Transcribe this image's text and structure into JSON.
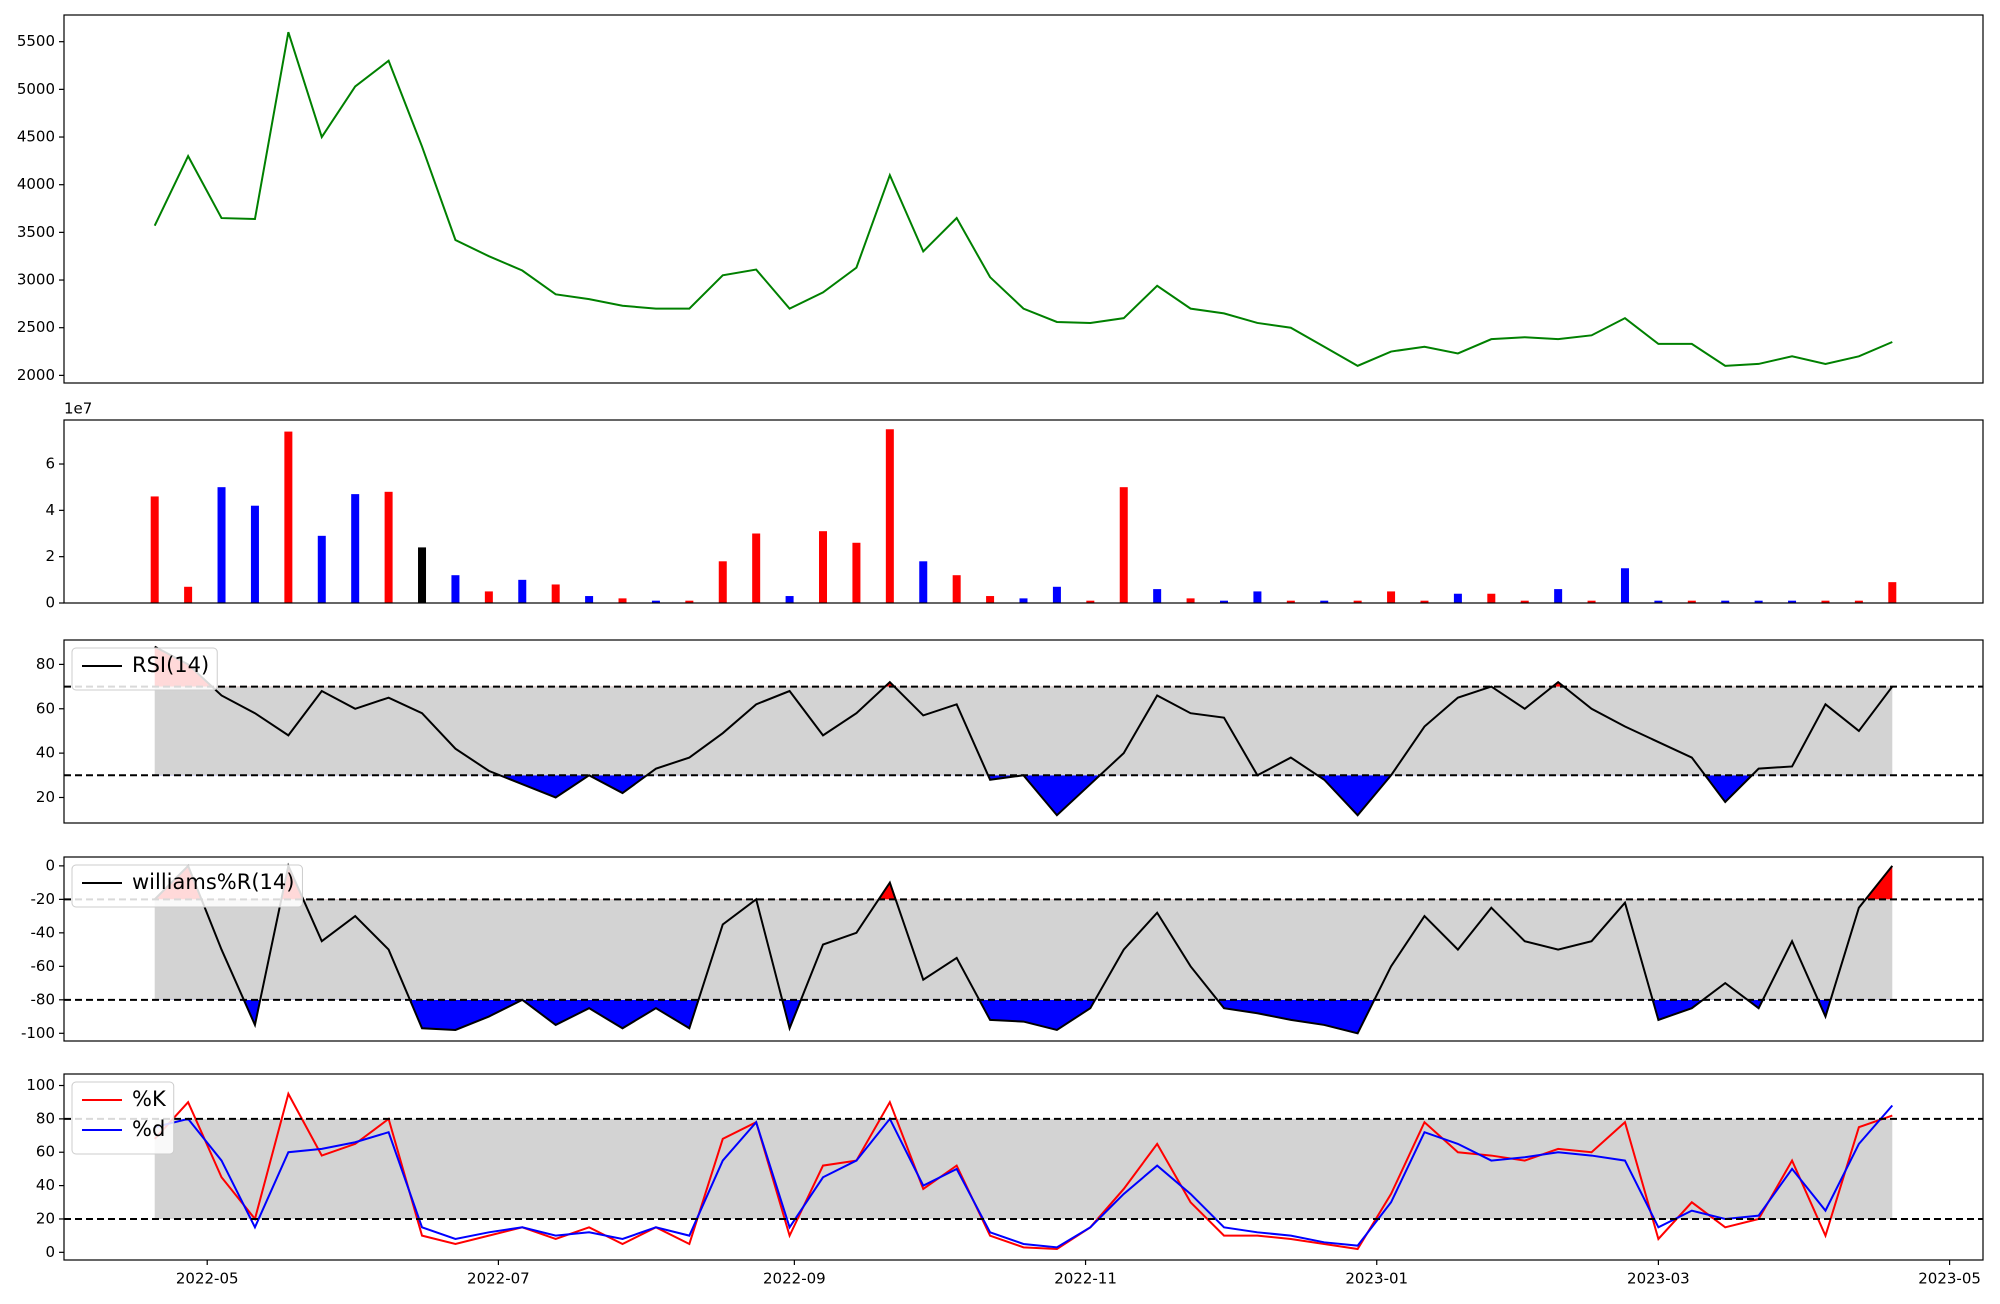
{
  "chart_data": [
    {
      "type": "line",
      "x": [
        "2022-04-20",
        "2022-04-27",
        "2022-05-04",
        "2022-05-11",
        "2022-05-18",
        "2022-05-25",
        "2022-06-01",
        "2022-06-08",
        "2022-06-15",
        "2022-06-22",
        "2022-06-29",
        "2022-07-06",
        "2022-07-13",
        "2022-07-20",
        "2022-07-27",
        "2022-08-03",
        "2022-08-10",
        "2022-08-17",
        "2022-08-24",
        "2022-08-31",
        "2022-09-07",
        "2022-09-14",
        "2022-09-21",
        "2022-09-28",
        "2022-10-05",
        "2022-10-12",
        "2022-10-19",
        "2022-10-26",
        "2022-11-02",
        "2022-11-09",
        "2022-11-16",
        "2022-11-23",
        "2022-11-30",
        "2022-12-07",
        "2022-12-14",
        "2022-12-21",
        "2022-12-28",
        "2023-01-04",
        "2023-01-11",
        "2023-01-18",
        "2023-01-25",
        "2023-02-01",
        "2023-02-08",
        "2023-02-15",
        "2023-02-22",
        "2023-03-01",
        "2023-03-08",
        "2023-03-15",
        "2023-03-22",
        "2023-03-29",
        "2023-04-05",
        "2023-04-12",
        "2023-04-19"
      ],
      "series": [
        {
          "color": "#008000",
          "values": [
            3570,
            4300,
            3650,
            3640,
            5600,
            4500,
            5030,
            5300,
            4400,
            3420,
            3250,
            3100,
            2850,
            2800,
            2730,
            2700,
            2700,
            3050,
            3110,
            2700,
            2870,
            3130,
            4100,
            3300,
            3650,
            3030,
            2700,
            2560,
            2550,
            2600,
            2940,
            2700,
            2650,
            2550,
            2500,
            2300,
            2100,
            2250,
            2300,
            2230,
            2380,
            2400,
            2380,
            2420,
            2600,
            2330,
            2330,
            2100,
            2120,
            2200,
            2120,
            2200,
            2350
          ]
        }
      ],
      "xlim": [
        "2022-04-01",
        "2023-05-08"
      ],
      "ylim": [
        1920,
        5780
      ],
      "yticks": [
        2000,
        2500,
        3000,
        3500,
        4000,
        4500,
        5000,
        5500
      ]
    },
    {
      "type": "bar",
      "x": [
        "2022-04-20",
        "2022-04-27",
        "2022-05-04",
        "2022-05-11",
        "2022-05-18",
        "2022-05-25",
        "2022-06-01",
        "2022-06-08",
        "2022-06-15",
        "2022-06-22",
        "2022-06-29",
        "2022-07-06",
        "2022-07-13",
        "2022-07-20",
        "2022-07-27",
        "2022-08-03",
        "2022-08-10",
        "2022-08-17",
        "2022-08-24",
        "2022-08-31",
        "2022-09-07",
        "2022-09-14",
        "2022-09-21",
        "2022-09-28",
        "2022-10-05",
        "2022-10-12",
        "2022-10-19",
        "2022-10-26",
        "2022-11-02",
        "2022-11-09",
        "2022-11-16",
        "2022-11-23",
        "2022-11-30",
        "2022-12-07",
        "2022-12-14",
        "2022-12-21",
        "2022-12-28",
        "2023-01-04",
        "2023-01-11",
        "2023-01-18",
        "2023-01-25",
        "2023-02-01",
        "2023-02-08",
        "2023-02-15",
        "2023-02-22",
        "2023-03-01",
        "2023-03-08",
        "2023-03-15",
        "2023-03-22",
        "2023-03-29",
        "2023-04-05",
        "2023-04-12",
        "2023-04-19"
      ],
      "values": [
        4.6,
        0.7,
        5.0,
        4.2,
        7.4,
        2.9,
        4.7,
        4.8,
        2.4,
        1.2,
        0.5,
        1.0,
        0.8,
        0.3,
        0.2,
        0.1,
        0.1,
        1.8,
        3.0,
        0.3,
        3.1,
        2.6,
        7.5,
        1.8,
        1.2,
        0.3,
        0.2,
        0.7,
        0.1,
        5.0,
        0.6,
        0.2,
        0.1,
        0.5,
        0.1,
        0.1,
        0.1,
        0.5,
        0.1,
        0.4,
        0.4,
        0.1,
        0.6,
        0.1,
        1.5,
        0.1,
        0.1,
        0.1,
        0.1,
        0.1,
        0.1,
        0.1,
        0.9
      ],
      "colors": [
        "#ff0000",
        "#ff0000",
        "#0000ff",
        "#0000ff",
        "#ff0000",
        "#0000ff",
        "#0000ff",
        "#ff0000",
        "#000000",
        "#0000ff",
        "#ff0000",
        "#0000ff",
        "#ff0000",
        "#0000ff",
        "#ff0000",
        "#0000ff",
        "#ff0000",
        "#ff0000",
        "#ff0000",
        "#0000ff",
        "#ff0000",
        "#ff0000",
        "#ff0000",
        "#0000ff",
        "#ff0000",
        "#ff0000",
        "#0000ff",
        "#0000ff",
        "#ff0000",
        "#ff0000",
        "#0000ff",
        "#ff0000",
        "#0000ff",
        "#0000ff",
        "#ff0000",
        "#0000ff",
        "#ff0000",
        "#ff0000",
        "#ff0000",
        "#0000ff",
        "#ff0000",
        "#ff0000",
        "#0000ff",
        "#ff0000",
        "#0000ff",
        "#0000ff",
        "#ff0000",
        "#0000ff",
        "#0000ff",
        "#0000ff",
        "#ff0000",
        "#ff0000",
        "#ff0000"
      ],
      "offset_label": "1e7",
      "xlim": [
        "2022-04-01",
        "2023-05-08"
      ],
      "ylim": [
        0,
        7.9
      ],
      "yticks": [
        0,
        2,
        4,
        6
      ]
    },
    {
      "type": "line",
      "x": [
        "2022-04-20",
        "2022-04-27",
        "2022-05-04",
        "2022-05-11",
        "2022-05-18",
        "2022-05-25",
        "2022-06-01",
        "2022-06-08",
        "2022-06-15",
        "2022-06-22",
        "2022-06-29",
        "2022-07-06",
        "2022-07-13",
        "2022-07-20",
        "2022-07-27",
        "2022-08-03",
        "2022-08-10",
        "2022-08-17",
        "2022-08-24",
        "2022-08-31",
        "2022-09-07",
        "2022-09-14",
        "2022-09-21",
        "2022-09-28",
        "2022-10-05",
        "2022-10-12",
        "2022-10-19",
        "2022-10-26",
        "2022-11-02",
        "2022-11-09",
        "2022-11-16",
        "2022-11-23",
        "2022-11-30",
        "2022-12-07",
        "2022-12-14",
        "2022-12-21",
        "2022-12-28",
        "2023-01-04",
        "2023-01-11",
        "2023-01-18",
        "2023-01-25",
        "2023-02-01",
        "2023-02-08",
        "2023-02-15",
        "2023-02-22",
        "2023-03-01",
        "2023-03-08",
        "2023-03-15",
        "2023-03-22",
        "2023-03-29",
        "2023-04-05",
        "2023-04-12",
        "2023-04-19"
      ],
      "series": [
        {
          "name": "RSI(14)",
          "color": "#000000",
          "values": [
            88,
            80,
            66,
            58,
            48,
            68,
            60,
            65,
            58,
            42,
            32,
            26,
            20,
            30,
            22,
            33,
            38,
            49,
            62,
            68,
            48,
            58,
            72,
            57,
            62,
            28,
            30,
            12,
            26,
            40,
            66,
            58,
            56,
            30,
            38,
            28,
            12,
            30,
            52,
            65,
            70,
            60,
            72,
            60,
            52,
            45,
            38,
            18,
            33,
            34,
            62,
            50,
            70
          ]
        }
      ],
      "thresholds": [
        30,
        70
      ],
      "band_color": "#d3d3d3",
      "upper_fill": "#ff0000",
      "lower_fill": "#0000ff",
      "legend": "upper left",
      "xlim": [
        "2022-04-01",
        "2023-05-08"
      ],
      "ylim": [
        8.5,
        91
      ],
      "yticks": [
        20,
        40,
        60,
        80
      ]
    },
    {
      "type": "line",
      "x": [
        "2022-04-20",
        "2022-04-27",
        "2022-05-04",
        "2022-05-11",
        "2022-05-18",
        "2022-05-25",
        "2022-06-01",
        "2022-06-08",
        "2022-06-15",
        "2022-06-22",
        "2022-06-29",
        "2022-07-06",
        "2022-07-13",
        "2022-07-20",
        "2022-07-27",
        "2022-08-03",
        "2022-08-10",
        "2022-08-17",
        "2022-08-24",
        "2022-08-31",
        "2022-09-07",
        "2022-09-14",
        "2022-09-21",
        "2022-09-28",
        "2022-10-05",
        "2022-10-12",
        "2022-10-19",
        "2022-10-26",
        "2022-11-02",
        "2022-11-09",
        "2022-11-16",
        "2022-11-23",
        "2022-11-30",
        "2022-12-07",
        "2022-12-14",
        "2022-12-21",
        "2022-12-28",
        "2023-01-04",
        "2023-01-11",
        "2023-01-18",
        "2023-01-25",
        "2023-02-01",
        "2023-02-08",
        "2023-02-15",
        "2023-02-22",
        "2023-03-01",
        "2023-03-08",
        "2023-03-15",
        "2023-03-22",
        "2023-03-29",
        "2023-04-05",
        "2023-04-12",
        "2023-04-19"
      ],
      "series": [
        {
          "name": "williams%R(14)",
          "color": "#000000",
          "values": [
            -20,
            0,
            -50,
            -95,
            0,
            -45,
            -30,
            -50,
            -97,
            -98,
            -90,
            -80,
            -95,
            -85,
            -97,
            -85,
            -97,
            -35,
            -20,
            -97,
            -47,
            -40,
            -10,
            -68,
            -55,
            -92,
            -93,
            -98,
            -85,
            -50,
            -28,
            -60,
            -85,
            -88,
            -92,
            -95,
            -100,
            -60,
            -30,
            -50,
            -25,
            -45,
            -50,
            -45,
            -22,
            -92,
            -85,
            -70,
            -85,
            -45,
            -90,
            -25,
            0
          ]
        }
      ],
      "thresholds": [
        -80,
        -20
      ],
      "band_color": "#d3d3d3",
      "upper_fill": "#ff0000",
      "lower_fill": "#0000ff",
      "legend": "upper left",
      "xlim": [
        "2022-04-01",
        "2023-05-08"
      ],
      "ylim": [
        -104.6,
        5.3
      ],
      "yticks": [
        -100,
        -80,
        -60,
        -40,
        -20,
        0
      ]
    },
    {
      "type": "line",
      "x": [
        "2022-04-20",
        "2022-04-27",
        "2022-05-04",
        "2022-05-11",
        "2022-05-18",
        "2022-05-25",
        "2022-06-01",
        "2022-06-08",
        "2022-06-15",
        "2022-06-22",
        "2022-06-29",
        "2022-07-06",
        "2022-07-13",
        "2022-07-20",
        "2022-07-27",
        "2022-08-03",
        "2022-08-10",
        "2022-08-17",
        "2022-08-24",
        "2022-08-31",
        "2022-09-07",
        "2022-09-14",
        "2022-09-21",
        "2022-09-28",
        "2022-10-05",
        "2022-10-12",
        "2022-10-19",
        "2022-10-26",
        "2022-11-02",
        "2022-11-09",
        "2022-11-16",
        "2022-11-23",
        "2022-11-30",
        "2022-12-07",
        "2022-12-14",
        "2022-12-21",
        "2022-12-28",
        "2023-01-04",
        "2023-01-11",
        "2023-01-18",
        "2023-01-25",
        "2023-02-01",
        "2023-02-08",
        "2023-02-15",
        "2023-02-22",
        "2023-03-01",
        "2023-03-08",
        "2023-03-15",
        "2023-03-22",
        "2023-03-29",
        "2023-04-05",
        "2023-04-12",
        "2023-04-19"
      ],
      "series": [
        {
          "name": "%K",
          "color": "#ff0000",
          "values": [
            68,
            90,
            45,
            20,
            95,
            58,
            65,
            80,
            10,
            5,
            10,
            15,
            8,
            15,
            5,
            15,
            5,
            68,
            78,
            10,
            52,
            55,
            90,
            38,
            52,
            10,
            3,
            2,
            15,
            38,
            65,
            30,
            10,
            10,
            8,
            5,
            2,
            35,
            78,
            60,
            58,
            55,
            62,
            60,
            78,
            8,
            30,
            15,
            20,
            55,
            10,
            75,
            82
          ]
        },
        {
          "name": "%d",
          "color": "#0000ff",
          "values": [
            75,
            80,
            55,
            15,
            60,
            62,
            66,
            72,
            15,
            8,
            12,
            15,
            10,
            12,
            8,
            15,
            10,
            55,
            78,
            15,
            45,
            55,
            80,
            40,
            50,
            12,
            5,
            3,
            15,
            35,
            52,
            35,
            15,
            12,
            10,
            6,
            4,
            30,
            72,
            65,
            55,
            57,
            60,
            58,
            55,
            15,
            25,
            20,
            22,
            50,
            25,
            65,
            88
          ]
        }
      ],
      "thresholds": [
        20,
        80
      ],
      "band_color": "#d3d3d3",
      "legend": "upper left",
      "xlim": [
        "2022-04-01",
        "2023-05-08"
      ],
      "ylim": [
        -4.6,
        106.9
      ],
      "yticks": [
        0,
        20,
        40,
        60,
        80,
        100
      ],
      "xticks": [
        {
          "value": "2022-05-01",
          "label": "2022-05"
        },
        {
          "value": "2022-07-01",
          "label": "2022-07"
        },
        {
          "value": "2022-09-01",
          "label": "2022-09"
        },
        {
          "value": "2022-11-01",
          "label": "2022-11"
        },
        {
          "value": "2023-01-01",
          "label": "2023-01"
        },
        {
          "value": "2023-03-01",
          "label": "2023-03"
        },
        {
          "value": "2023-05-01",
          "label": "2023-05"
        }
      ]
    }
  ]
}
